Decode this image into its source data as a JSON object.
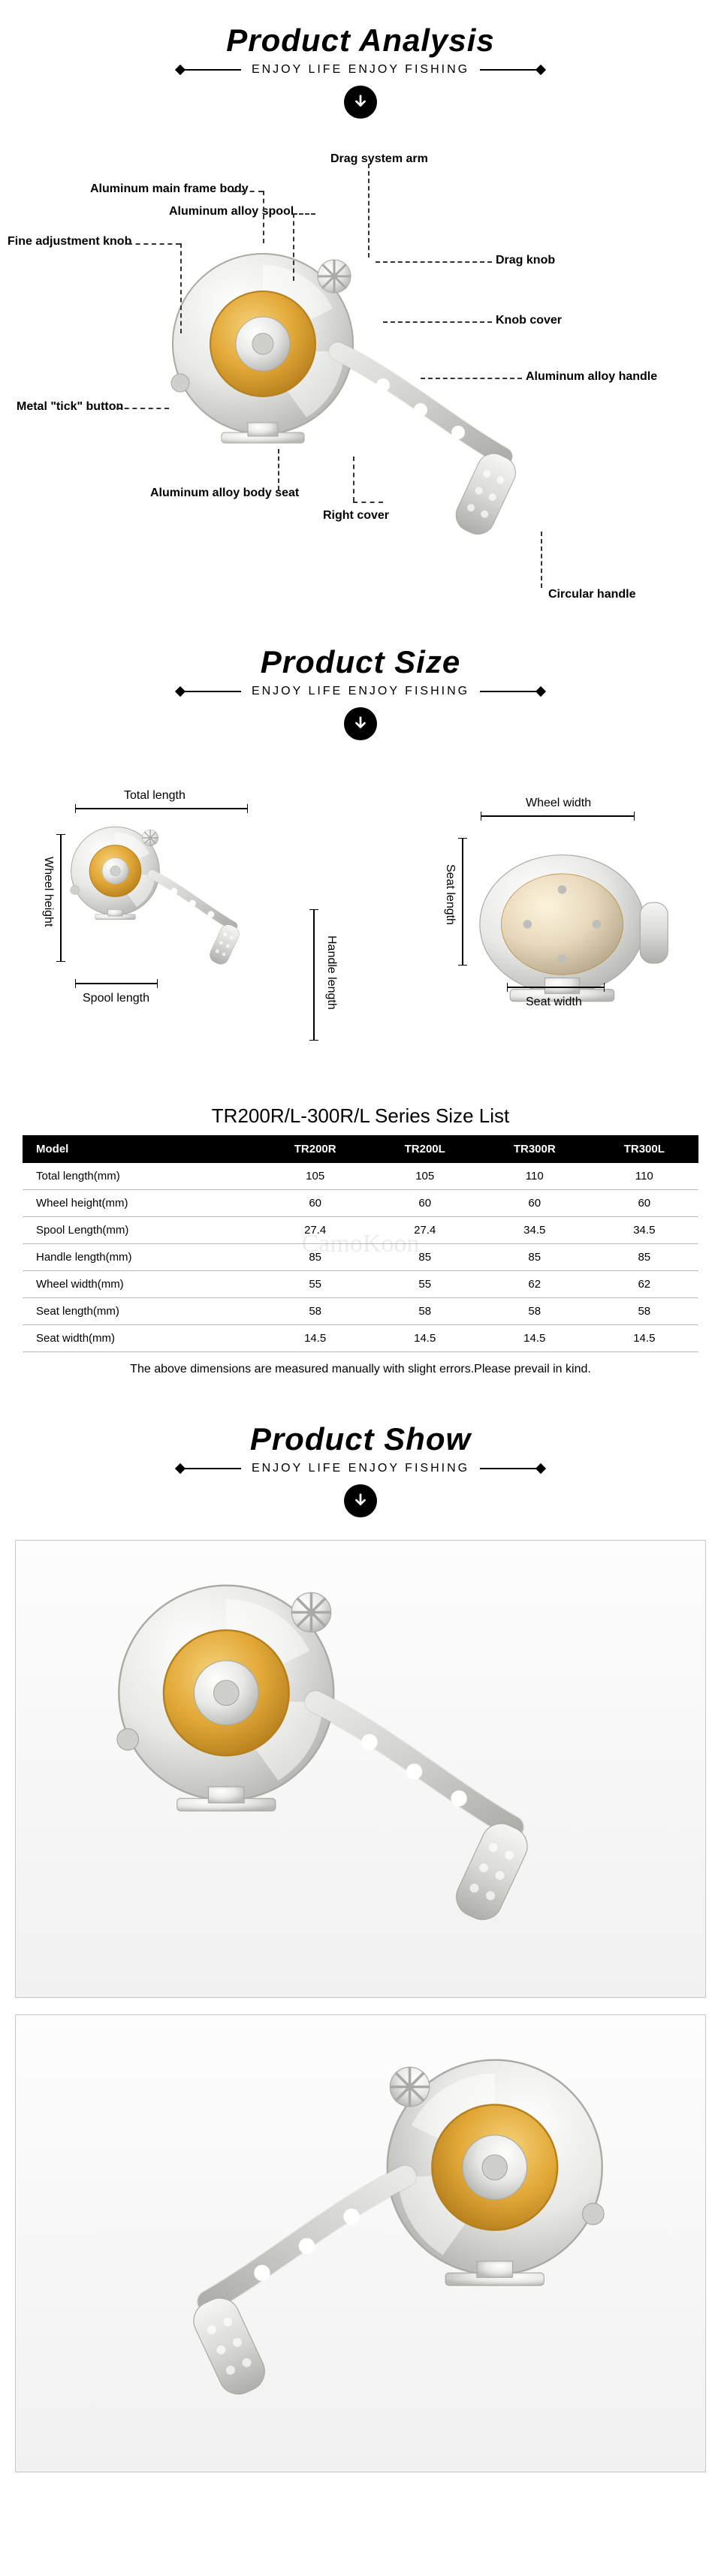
{
  "headers": {
    "analysis": {
      "title": "Product Analysis",
      "tagline": "ENJOY LIFE ENJOY FISHING"
    },
    "size": {
      "title": "Product Size",
      "tagline": "ENJOY LIFE ENJOY FISHING"
    },
    "show": {
      "title": "Product Show",
      "tagline": "ENJOY LIFE ENJOY FISHING"
    }
  },
  "analysis_callouts": {
    "drag_system_arm": "Drag system arm",
    "aluminum_main_frame": "Aluminum main frame body",
    "aluminum_alloy_spool": "Aluminum alloy spool",
    "fine_adjustment_knob": "Fine adjustment knob",
    "drag_knob": "Drag knob",
    "knob_cover": "Knob cover",
    "aluminum_alloy_handle": "Aluminum alloy handle",
    "metal_tick_button": "Metal \"tick\" button",
    "aluminum_body_seat": "Aluminum alloy body seat",
    "right_cover": "Right cover",
    "circular_handle": "Circular handle"
  },
  "size_labels": {
    "total_length": "Total length",
    "wheel_height": "Wheel height",
    "spool_length": "Spool length",
    "handle_length": "Handle length",
    "wheel_width": "Wheel width",
    "seat_length": "Seat length",
    "seat_width": "Seat width"
  },
  "spec_table": {
    "title": "TR200R/L-300R/L Series Size List",
    "columns": [
      "Model",
      "TR200R",
      "TR200L",
      "TR300R",
      "TR300L"
    ],
    "rows": [
      [
        "Total length(mm)",
        "105",
        "105",
        "110",
        "110"
      ],
      [
        "Wheel height(mm)",
        "60",
        "60",
        "60",
        "60"
      ],
      [
        "Spool Length(mm)",
        "27.4",
        "27.4",
        "34.5",
        "34.5"
      ],
      [
        "Handle length(mm)",
        "85",
        "85",
        "85",
        "85"
      ],
      [
        "Wheel width(mm)",
        "55",
        "55",
        "62",
        "62"
      ],
      [
        "Seat length(mm)",
        "58",
        "58",
        "58",
        "58"
      ],
      [
        "Seat width(mm)",
        "14.5",
        "14.5",
        "14.5",
        "14.5"
      ]
    ],
    "note": "The above dimensions are measured manually with slight errors.Please prevail in kind.",
    "header_bg": "#000000",
    "header_fg": "#ffffff",
    "row_border": "#bbbbbb",
    "watermark_text": "CamoKoon"
  },
  "colors": {
    "reel_body": "#e8e8e6",
    "reel_body_hi": "#ffffff",
    "reel_body_lo": "#b8b8b4",
    "spool_gold": "#e2a838",
    "spool_gold_hi": "#f6d37a",
    "spool_gold_lo": "#b57f1c",
    "outline": "#a9a9a5",
    "bg": "#ffffff"
  }
}
